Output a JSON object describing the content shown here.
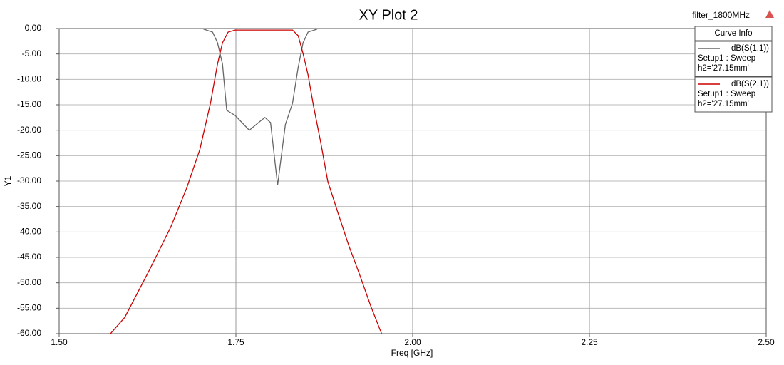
{
  "chart_data": {
    "type": "line",
    "title": "XY Plot 2",
    "design_name": "filter_1800MHz",
    "x_label": "Freq [GHz]",
    "y_label": "Y1",
    "legend_title": "Curve Info",
    "legend_position": "upper right",
    "grid": true,
    "xlim": [
      1.5,
      2.5
    ],
    "ylim": [
      -60,
      0
    ],
    "xticks": [
      {
        "value": 1.5,
        "label": "1.50"
      },
      {
        "value": 1.75,
        "label": "1.75"
      },
      {
        "value": 2,
        "label": "2.00"
      },
      {
        "value": 2.25,
        "label": "2.25"
      },
      {
        "value": 2.5,
        "label": "2.50"
      }
    ],
    "yticks": [
      {
        "value": 0,
        "label": "0.00"
      },
      {
        "value": -5,
        "label": "-5.00"
      },
      {
        "value": -10,
        "label": "-10.00"
      },
      {
        "value": -15,
        "label": "-15.00"
      },
      {
        "value": -20,
        "label": "-20.00"
      },
      {
        "value": -25,
        "label": "-25.00"
      },
      {
        "value": -30,
        "label": "-30.00"
      },
      {
        "value": -35,
        "label": "-35.00"
      },
      {
        "value": -40,
        "label": "-40.00"
      },
      {
        "value": -45,
        "label": "-45.00"
      },
      {
        "value": -50,
        "label": "-50.00"
      },
      {
        "value": -55,
        "label": "-55.00"
      },
      {
        "value": -60,
        "label": "-60.00"
      }
    ],
    "series": [
      {
        "name": "dB(S(1,1))",
        "setup": "Setup1 : Sweep",
        "variation": "h2='27.15mm'",
        "color": "#666666",
        "x": [
          1.704,
          1.717,
          1.724,
          1.731,
          1.737,
          1.749,
          1.769,
          1.781,
          1.791,
          1.799,
          1.809,
          1.82,
          1.83,
          1.838,
          1.845,
          1.852,
          1.865
        ],
        "values": [
          -0.1,
          -0.7,
          -2.8,
          -7.0,
          -16.1,
          -17.1,
          -20.0,
          -18.6,
          -17.5,
          -18.5,
          -30.8,
          -18.9,
          -14.7,
          -7.7,
          -2.8,
          -0.7,
          -0.1
        ]
      },
      {
        "name": "dB(S(2,1))",
        "setup": "Setup1 : Sweep",
        "variation": "h2='27.15mm'",
        "color": "#cc0000",
        "x": [
          1.5726,
          1.5927,
          1.628,
          1.658,
          1.68,
          1.699,
          1.714,
          1.724,
          1.731,
          1.739,
          1.749,
          1.79,
          1.83,
          1.838,
          1.845,
          1.852,
          1.86,
          1.87,
          1.88,
          1.895,
          1.91,
          1.925,
          1.941,
          1.956
        ],
        "values": [
          -60,
          -56.8,
          -47.4,
          -39.0,
          -31.5,
          -23.8,
          -14.7,
          -7.0,
          -2.8,
          -0.7,
          -0.3,
          -0.3,
          -0.3,
          -1.4,
          -4.9,
          -9.1,
          -15.4,
          -22.4,
          -30.1,
          -36.5,
          -42.8,
          -48.4,
          -54.7,
          -60
        ]
      }
    ]
  }
}
